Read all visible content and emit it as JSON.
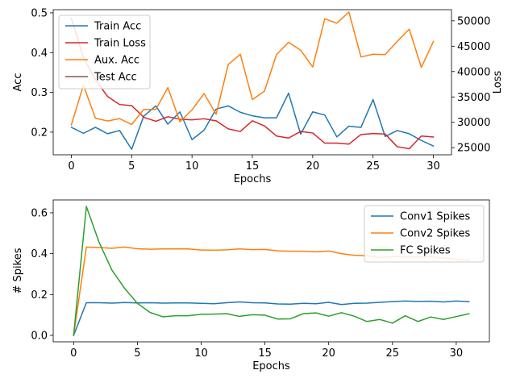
{
  "colors": {
    "blue": "#1f77b4",
    "orange": "#ff7f0e",
    "red": "#d62728",
    "brown": "#8c564b",
    "green": "#2ca02c",
    "legend_frame": "#cccccc"
  },
  "chart_data": [
    {
      "type": "line",
      "xlabel": "Epochs",
      "ylabel": "Acc",
      "y2label": "Loss",
      "xlim": [
        -1.5,
        31.5
      ],
      "ylim": [
        0.143,
        0.508
      ],
      "y2lim": [
        23600,
        52200
      ],
      "xticks": [
        "0",
        "5",
        "10",
        "15",
        "20",
        "25",
        "30"
      ],
      "yticks": [
        "0.2",
        "0.3",
        "0.4",
        "0.5"
      ],
      "y2ticks": [
        "25000",
        "30000",
        "35000",
        "40000",
        "45000",
        "50000"
      ],
      "legend_position": "top-left",
      "legend": [
        "Train Acc",
        "Train Loss",
        "Aux. Acc",
        "Test Acc"
      ],
      "series": [
        {
          "name": "Train Acc",
          "axis": "left",
          "color": "blue",
          "x": [
            0,
            1,
            2,
            3,
            4,
            5,
            6,
            7,
            8,
            9,
            10,
            11,
            12,
            13,
            14,
            15,
            16,
            17,
            18,
            19,
            20,
            21,
            22,
            23,
            24,
            25,
            26,
            27,
            28,
            29,
            30
          ],
          "values": [
            0.212,
            0.197,
            0.212,
            0.196,
            0.204,
            0.157,
            0.24,
            0.266,
            0.22,
            0.251,
            0.181,
            0.205,
            0.258,
            0.266,
            0.25,
            0.241,
            0.236,
            0.236,
            0.298,
            0.195,
            0.251,
            0.243,
            0.188,
            0.215,
            0.212,
            0.282,
            0.189,
            0.204,
            0.196,
            0.179,
            0.165
          ]
        },
        {
          "name": "Train Loss",
          "axis": "right",
          "color": "red",
          "x": [
            0,
            1,
            2,
            3,
            4,
            5,
            6,
            7,
            8,
            9,
            10,
            11,
            12,
            13,
            14,
            15,
            16,
            17,
            18,
            19,
            20,
            21,
            22,
            23,
            24,
            25,
            26,
            27,
            28,
            29,
            30
          ],
          "values": [
            50500,
            42800,
            38400,
            35100,
            33500,
            33300,
            31000,
            30200,
            31100,
            30600,
            30500,
            30700,
            30300,
            28700,
            28200,
            30300,
            29300,
            27300,
            26900,
            28200,
            27900,
            25900,
            25900,
            25700,
            27600,
            27800,
            27700,
            25200,
            24800,
            27300,
            27100
          ]
        },
        {
          "name": "Aux. Acc",
          "axis": "left",
          "color": "orange",
          "x": [
            0,
            1,
            2,
            3,
            4,
            5,
            6,
            7,
            8,
            9,
            10,
            11,
            12,
            13,
            14,
            15,
            16,
            17,
            18,
            19,
            20,
            21,
            22,
            23,
            24,
            25,
            26,
            27,
            28,
            29,
            30
          ],
          "values": [
            0.218,
            0.318,
            0.235,
            0.228,
            0.234,
            0.219,
            0.257,
            0.257,
            0.312,
            0.226,
            0.256,
            0.297,
            0.245,
            0.37,
            0.396,
            0.282,
            0.303,
            0.395,
            0.426,
            0.406,
            0.364,
            0.485,
            0.474,
            0.502,
            0.389,
            0.396,
            0.395,
            0.428,
            0.459,
            0.363,
            0.428
          ]
        },
        {
          "name": "Test Acc",
          "axis": "left",
          "color": "brown",
          "x": [],
          "values": []
        }
      ]
    },
    {
      "type": "line",
      "xlabel": "Epochs",
      "ylabel": "# Spikes",
      "xlim": [
        -1.6,
        32.6
      ],
      "ylim": [
        -0.0316,
        0.663
      ],
      "xticks": [
        "0",
        "5",
        "10",
        "15",
        "20",
        "25",
        "30"
      ],
      "yticks": [
        "0.0",
        "0.2",
        "0.4",
        "0.6"
      ],
      "legend_position": "top-right",
      "legend": [
        "Conv1 Spikes",
        "Conv2 Spikes",
        "FC Spikes"
      ],
      "series": [
        {
          "name": "Conv1 Spikes",
          "color": "blue",
          "x": [
            0,
            1,
            2,
            3,
            4,
            5,
            6,
            7,
            8,
            9,
            10,
            11,
            12,
            13,
            14,
            15,
            16,
            17,
            18,
            19,
            20,
            21,
            22,
            23,
            24,
            25,
            26,
            27,
            28,
            29,
            30,
            31
          ],
          "values": [
            0.0,
            0.16,
            0.16,
            0.158,
            0.161,
            0.159,
            0.16,
            0.158,
            0.159,
            0.159,
            0.157,
            0.155,
            0.16,
            0.164,
            0.16,
            0.159,
            0.154,
            0.153,
            0.157,
            0.155,
            0.162,
            0.151,
            0.157,
            0.158,
            0.162,
            0.165,
            0.168,
            0.166,
            0.167,
            0.164,
            0.168,
            0.165
          ]
        },
        {
          "name": "Conv2 Spikes",
          "color": "orange",
          "x": [
            0,
            1,
            2,
            3,
            4,
            5,
            6,
            7,
            8,
            9,
            10,
            11,
            12,
            13,
            14,
            15,
            16,
            17,
            18,
            19,
            20,
            21,
            22,
            23,
            24,
            25,
            26,
            27,
            28,
            29,
            30,
            31
          ],
          "values": [
            0.0,
            0.432,
            0.43,
            0.426,
            0.432,
            0.424,
            0.422,
            0.423,
            0.423,
            0.423,
            0.418,
            0.417,
            0.419,
            0.423,
            0.42,
            0.421,
            0.414,
            0.412,
            0.412,
            0.409,
            0.413,
            0.4,
            0.392,
            0.39,
            0.381,
            0.386,
            0.384,
            0.383,
            0.385,
            0.379,
            0.373,
            0.368
          ]
        },
        {
          "name": "FC Spikes",
          "color": "green",
          "x": [
            0,
            1,
            2,
            3,
            4,
            5,
            6,
            7,
            8,
            9,
            10,
            11,
            12,
            13,
            14,
            15,
            16,
            17,
            18,
            19,
            20,
            21,
            22,
            23,
            24,
            25,
            26,
            27,
            28,
            29,
            30,
            31
          ],
          "values": [
            0.0,
            0.631,
            0.455,
            0.32,
            0.23,
            0.157,
            0.112,
            0.091,
            0.096,
            0.096,
            0.103,
            0.104,
            0.106,
            0.093,
            0.101,
            0.099,
            0.08,
            0.081,
            0.106,
            0.11,
            0.094,
            0.111,
            0.094,
            0.068,
            0.078,
            0.06,
            0.096,
            0.068,
            0.09,
            0.078,
            0.092,
            0.106
          ]
        }
      ]
    }
  ]
}
